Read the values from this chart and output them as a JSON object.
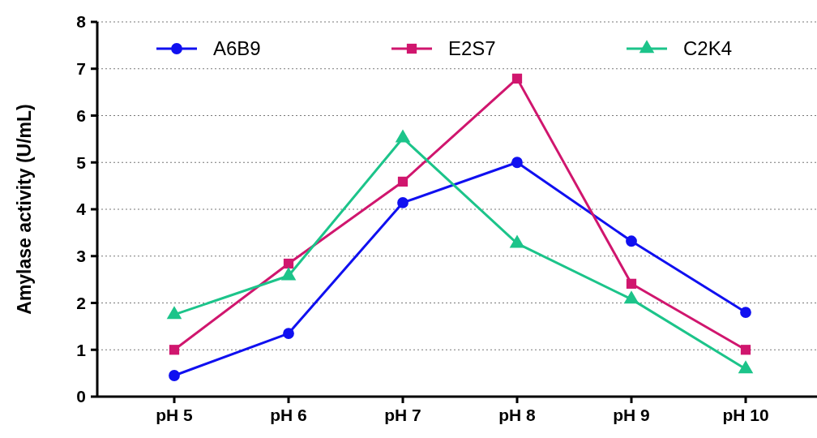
{
  "chart_data": {
    "type": "line",
    "ylabel": "Amylase activity (U/mL)",
    "categories": [
      "pH 5",
      "pH 6",
      "pH 7",
      "pH 8",
      "pH 9",
      "pH 10"
    ],
    "series": [
      {
        "name": "A6B9",
        "color": "#1010f0",
        "marker": "circle",
        "values": [
          0.45,
          1.35,
          4.14,
          5.0,
          3.32,
          1.8
        ]
      },
      {
        "name": "E2S7",
        "color": "#d0166e",
        "marker": "square",
        "values": [
          1.0,
          2.84,
          4.59,
          6.79,
          2.41,
          1.0
        ]
      },
      {
        "name": "C2K4",
        "color": "#1cc48a",
        "marker": "triangle",
        "values": [
          1.75,
          2.58,
          5.52,
          3.27,
          2.08,
          0.59
        ]
      }
    ],
    "ylim": [
      0,
      8
    ],
    "yticks": [
      0,
      1,
      2,
      3,
      4,
      5,
      6,
      7,
      8
    ],
    "grid": "y",
    "legend": "top",
    "line_style": "solid"
  }
}
